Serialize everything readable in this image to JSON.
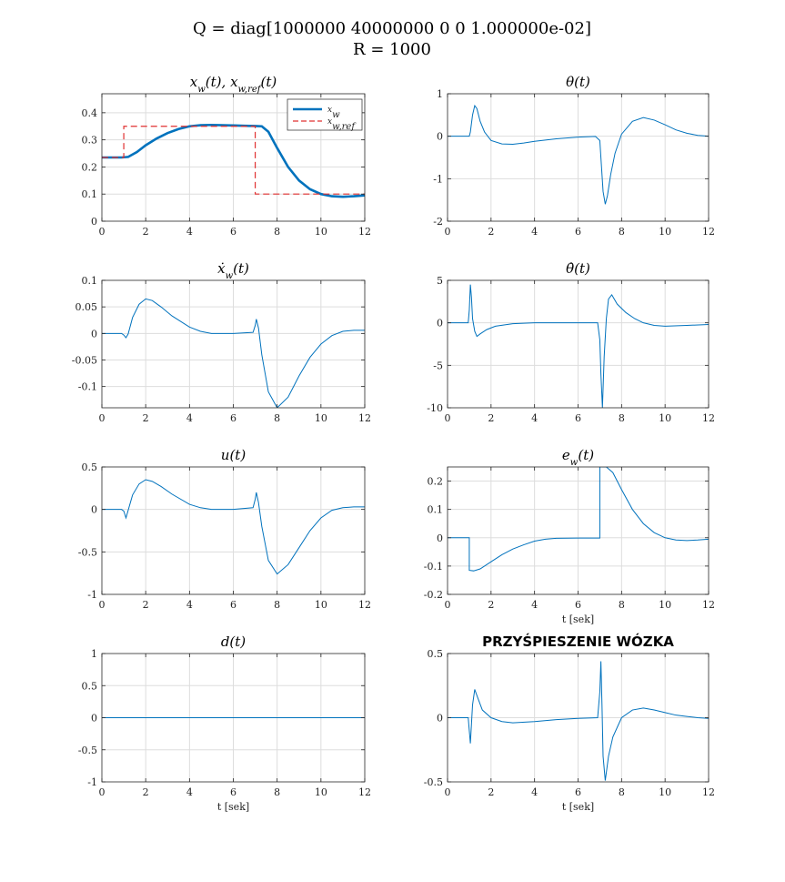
{
  "figure": {
    "title_line1": "Q = diag[1000000 40000000 0 0 1.000000e-02]",
    "title_line2": "R = 1000"
  },
  "colors": {
    "series": "#0072BD",
    "reference": "#e03030",
    "grid": "#dddddd",
    "axes": "#262626"
  },
  "chart_data": [
    {
      "type": "line",
      "title": "x_w(t), x_{w,ref}(t)",
      "xlabel": "",
      "xlim": [
        0,
        12
      ],
      "ylim": [
        0,
        0.47
      ],
      "xticks": [
        0,
        2,
        4,
        6,
        8,
        10,
        12
      ],
      "yticks": [
        0,
        0.1,
        0.2,
        0.3,
        0.4
      ],
      "ytick_labels": [
        "0",
        "0.1",
        "0.2",
        "0.3",
        "0.4"
      ],
      "grid": true,
      "legend": {
        "placement": "top-right",
        "entries": [
          "x_w",
          "x_{w,ref}"
        ]
      },
      "series": [
        {
          "name": "x_w",
          "style": "solid-thick",
          "x": [
            0,
            0.9,
            1.2,
            1.6,
            2,
            2.5,
            3,
            3.5,
            4,
            4.5,
            5,
            5.5,
            6,
            6.5,
            7,
            7.3,
            7.6,
            8,
            8.5,
            9,
            9.5,
            10,
            10.5,
            11,
            11.5,
            12
          ],
          "y": [
            0.235,
            0.235,
            0.237,
            0.255,
            0.28,
            0.305,
            0.325,
            0.34,
            0.35,
            0.354,
            0.355,
            0.354,
            0.353,
            0.352,
            0.351,
            0.35,
            0.33,
            0.27,
            0.2,
            0.15,
            0.118,
            0.1,
            0.092,
            0.09,
            0.092,
            0.095
          ]
        },
        {
          "name": "x_{w,ref}",
          "style": "dashed",
          "x": [
            0,
            1,
            1,
            7,
            7,
            12
          ],
          "y": [
            0.235,
            0.235,
            0.35,
            0.35,
            0.1,
            0.1
          ]
        }
      ]
    },
    {
      "type": "line",
      "title": "θ(t)",
      "xlabel": "",
      "xlim": [
        0,
        12
      ],
      "ylim": [
        -2,
        1
      ],
      "xticks": [
        0,
        2,
        4,
        6,
        8,
        10,
        12
      ],
      "yticks": [
        -2,
        -1,
        0,
        1
      ],
      "ytick_labels": [
        "-2",
        "-1",
        "0",
        "1"
      ],
      "grid": true,
      "series": [
        {
          "name": "",
          "x": [
            0,
            1,
            1.05,
            1.15,
            1.25,
            1.35,
            1.5,
            1.7,
            2,
            2.5,
            3,
            3.5,
            4,
            5,
            6,
            6.8,
            7,
            7.05,
            7.15,
            7.25,
            7.35,
            7.5,
            7.7,
            8,
            8.5,
            9,
            9.5,
            10,
            10.5,
            11,
            11.5,
            12
          ],
          "y": [
            0,
            0,
            0.1,
            0.5,
            0.72,
            0.65,
            0.35,
            0.1,
            -0.1,
            -0.18,
            -0.19,
            -0.16,
            -0.12,
            -0.06,
            -0.02,
            -0.005,
            -0.1,
            -0.5,
            -1.3,
            -1.6,
            -1.4,
            -0.9,
            -0.4,
            0.05,
            0.35,
            0.44,
            0.38,
            0.27,
            0.15,
            0.07,
            0.02,
            0.0
          ]
        }
      ]
    },
    {
      "type": "line",
      "title": "ẋ_w(t)",
      "xlabel": "",
      "xlim": [
        0,
        12
      ],
      "ylim": [
        -0.14,
        0.1
      ],
      "xticks": [
        0,
        2,
        4,
        6,
        8,
        10,
        12
      ],
      "yticks": [
        -0.1,
        -0.05,
        0,
        0.05,
        0.1
      ],
      "ytick_labels": [
        "-0.1",
        "-0.05",
        "0",
        "0.05",
        "0.1"
      ],
      "grid": true,
      "series": [
        {
          "name": "",
          "x": [
            0,
            0.9,
            1.0,
            1.1,
            1.2,
            1.4,
            1.7,
            2.0,
            2.3,
            2.7,
            3.2,
            4,
            4.5,
            5,
            6,
            6.9,
            7.0,
            7.05,
            7.15,
            7.3,
            7.6,
            8.0,
            8.5,
            9,
            9.5,
            10,
            10.5,
            11,
            11.5,
            12
          ],
          "y": [
            0,
            0,
            -0.003,
            -0.008,
            -0.001,
            0.03,
            0.055,
            0.065,
            0.062,
            0.05,
            0.033,
            0.012,
            0.004,
            0.0,
            0.0,
            0.002,
            0.015,
            0.027,
            0.01,
            -0.04,
            -0.11,
            -0.14,
            -0.12,
            -0.08,
            -0.045,
            -0.02,
            -0.004,
            0.004,
            0.006,
            0.006
          ]
        }
      ]
    },
    {
      "type": "line",
      "title": "θ̇(t)",
      "xlabel": "",
      "xlim": [
        0,
        12
      ],
      "ylim": [
        -10,
        5
      ],
      "xticks": [
        0,
        2,
        4,
        6,
        8,
        10,
        12
      ],
      "yticks": [
        -10,
        -5,
        0,
        5
      ],
      "ytick_labels": [
        "-10",
        "-5",
        "0",
        "5"
      ],
      "grid": true,
      "series": [
        {
          "name": "",
          "x": [
            0,
            0.95,
            1.0,
            1.05,
            1.1,
            1.15,
            1.25,
            1.35,
            1.5,
            1.8,
            2.2,
            3,
            4,
            5,
            6,
            6.9,
            7.0,
            7.05,
            7.12,
            7.2,
            7.3,
            7.4,
            7.55,
            7.8,
            8.2,
            8.6,
            9,
            9.5,
            10,
            11,
            12
          ],
          "y": [
            0,
            0,
            1.5,
            4.5,
            3.0,
            0.5,
            -1.0,
            -1.6,
            -1.3,
            -0.8,
            -0.4,
            -0.1,
            0.0,
            0.0,
            0.0,
            0.0,
            -2,
            -6,
            -10,
            -4,
            0.5,
            2.8,
            3.3,
            2.2,
            1.2,
            0.5,
            0.0,
            -0.3,
            -0.4,
            -0.3,
            -0.2
          ]
        }
      ]
    },
    {
      "type": "line",
      "title": "u(t)",
      "xlabel": "",
      "xlim": [
        0,
        12
      ],
      "ylim": [
        -1,
        0.5
      ],
      "xticks": [
        0,
        2,
        4,
        6,
        8,
        10,
        12
      ],
      "yticks": [
        -1,
        -0.5,
        0,
        0.5
      ],
      "ytick_labels": [
        "-1",
        "-0.5",
        "0",
        "0.5"
      ],
      "grid": true,
      "series": [
        {
          "name": "",
          "x": [
            0,
            0.9,
            1.0,
            1.1,
            1.2,
            1.4,
            1.7,
            2.0,
            2.3,
            2.7,
            3.2,
            4,
            4.5,
            5,
            6,
            6.9,
            7.0,
            7.05,
            7.15,
            7.3,
            7.6,
            8.0,
            8.5,
            9,
            9.5,
            10,
            10.5,
            11,
            11.5,
            12
          ],
          "y": [
            0,
            0,
            -0.02,
            -0.1,
            -0.01,
            0.17,
            0.3,
            0.35,
            0.33,
            0.27,
            0.18,
            0.06,
            0.02,
            0.0,
            0.0,
            0.02,
            0.12,
            0.2,
            0.08,
            -0.2,
            -0.6,
            -0.76,
            -0.65,
            -0.45,
            -0.25,
            -0.1,
            -0.01,
            0.02,
            0.03,
            0.03
          ]
        }
      ]
    },
    {
      "type": "line",
      "title": "e_w(t)",
      "xlabel": "t [sek]",
      "xlim": [
        0,
        12
      ],
      "ylim": [
        -0.2,
        0.25
      ],
      "xticks": [
        0,
        2,
        4,
        6,
        8,
        10,
        12
      ],
      "yticks": [
        -0.2,
        -0.1,
        0,
        0.1,
        0.2
      ],
      "ytick_labels": [
        "-0.2",
        "-0.1",
        "0",
        "0.1",
        "0.2"
      ],
      "grid": true,
      "series": [
        {
          "name": "",
          "x": [
            0,
            1,
            1,
            1.2,
            1.5,
            2,
            2.5,
            3,
            3.5,
            4,
            4.5,
            5,
            6,
            7,
            7,
            7.3,
            7.6,
            8,
            8.5,
            9,
            9.5,
            10,
            10.5,
            11,
            11.5,
            12
          ],
          "y": [
            0,
            0,
            -0.115,
            -0.117,
            -0.11,
            -0.085,
            -0.06,
            -0.04,
            -0.025,
            -0.012,
            -0.005,
            -0.002,
            -0.001,
            -0.001,
            0.25,
            0.25,
            0.23,
            0.17,
            0.1,
            0.05,
            0.018,
            0.0,
            -0.008,
            -0.01,
            -0.008,
            -0.005
          ]
        }
      ]
    },
    {
      "type": "line",
      "title": "d(t)",
      "xlabel": "t [sek]",
      "xlim": [
        0,
        12
      ],
      "ylim": [
        -1,
        1
      ],
      "xticks": [
        0,
        2,
        4,
        6,
        8,
        10,
        12
      ],
      "yticks": [
        -1,
        -0.5,
        0,
        0.5,
        1
      ],
      "ytick_labels": [
        "-1",
        "-0.5",
        "0",
        "0.5",
        "1"
      ],
      "grid": true,
      "series": [
        {
          "name": "",
          "x": [
            0,
            12
          ],
          "y": [
            0,
            0
          ]
        }
      ]
    },
    {
      "type": "line",
      "title": "PRZYŚPIESZENIE WÓZKA",
      "xlabel": "t [sek]",
      "xlim": [
        0,
        12
      ],
      "ylim": [
        -0.5,
        0.5
      ],
      "xticks": [
        0,
        2,
        4,
        6,
        8,
        10,
        12
      ],
      "yticks": [
        -0.5,
        0,
        0.5
      ],
      "ytick_labels": [
        "-0.5",
        "0",
        "0.5"
      ],
      "grid": true,
      "series": [
        {
          "name": "",
          "x": [
            0,
            0.95,
            1.0,
            1.05,
            1.1,
            1.15,
            1.25,
            1.4,
            1.6,
            2,
            2.5,
            3,
            4,
            5,
            6,
            6.9,
            7.0,
            7.05,
            7.1,
            7.15,
            7.25,
            7.4,
            7.6,
            8,
            8.5,
            9,
            9.5,
            10,
            10.5,
            11,
            11.5,
            12
          ],
          "y": [
            0,
            0,
            -0.1,
            -0.2,
            -0.05,
            0.1,
            0.22,
            0.15,
            0.06,
            0.0,
            -0.03,
            -0.04,
            -0.03,
            -0.015,
            -0.005,
            0.0,
            0.2,
            0.44,
            0.1,
            -0.3,
            -0.49,
            -0.3,
            -0.15,
            0.0,
            0.06,
            0.075,
            0.06,
            0.04,
            0.02,
            0.01,
            0.0,
            -0.005
          ]
        }
      ]
    }
  ]
}
